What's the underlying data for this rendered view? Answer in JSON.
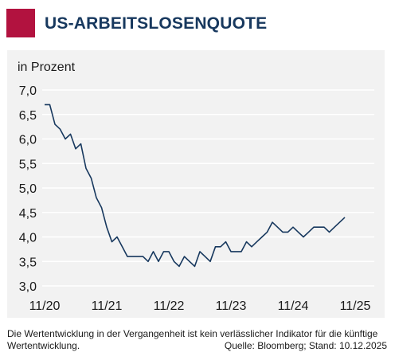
{
  "header": {
    "title": "US-ARBEITSLOSENQUOTE",
    "brand_color": "#b2123f",
    "title_color": "#17385e"
  },
  "chart_data": {
    "type": "line",
    "ylabel": "in Prozent",
    "ylim": [
      3.0,
      7.0
    ],
    "yticks": [
      "7,0",
      "6,5",
      "6,0",
      "5,5",
      "5,0",
      "4,5",
      "4,0",
      "3,5",
      "3,0"
    ],
    "xticks": [
      "11/20",
      "11/21",
      "11/22",
      "11/23",
      "11/24",
      "11/25"
    ],
    "grid": true,
    "line_color": "#17385e",
    "series": [
      {
        "x": [
          "2020-11",
          "2020-12",
          "2021-01",
          "2021-02",
          "2021-03",
          "2021-04",
          "2021-05",
          "2021-06",
          "2021-07",
          "2021-08",
          "2021-09",
          "2021-10",
          "2021-11",
          "2021-12",
          "2022-01",
          "2022-02",
          "2022-03",
          "2022-04",
          "2022-05",
          "2022-06",
          "2022-07",
          "2022-08",
          "2022-09",
          "2022-10",
          "2022-11",
          "2022-12",
          "2023-01",
          "2023-02",
          "2023-03",
          "2023-04",
          "2023-05",
          "2023-06",
          "2023-07",
          "2023-08",
          "2023-09",
          "2023-10",
          "2023-11",
          "2023-12",
          "2024-01",
          "2024-02",
          "2024-03",
          "2024-04",
          "2024-05",
          "2024-06",
          "2024-07",
          "2024-08",
          "2024-09",
          "2024-10",
          "2024-11",
          "2024-12",
          "2025-01",
          "2025-02",
          "2025-03",
          "2025-04",
          "2025-05",
          "2025-06",
          "2025-07",
          "2025-08",
          "2025-09"
        ],
        "values": [
          6.7,
          6.7,
          6.3,
          6.2,
          6.0,
          6.1,
          5.8,
          5.9,
          5.4,
          5.2,
          4.8,
          4.6,
          4.2,
          3.9,
          4.0,
          3.8,
          3.6,
          3.6,
          3.6,
          3.6,
          3.5,
          3.7,
          3.5,
          3.7,
          3.7,
          3.5,
          3.4,
          3.6,
          3.5,
          3.4,
          3.7,
          3.6,
          3.5,
          3.8,
          3.8,
          3.9,
          3.7,
          3.7,
          3.7,
          3.9,
          3.8,
          3.9,
          4.0,
          4.1,
          4.3,
          4.2,
          4.1,
          4.1,
          4.2,
          4.1,
          4.0,
          4.1,
          4.2,
          4.2,
          4.2,
          4.1,
          4.2,
          4.3,
          4.4
        ]
      }
    ]
  },
  "footer": {
    "disclaimer": "Die Wertentwicklung in der Vergangenheit ist kein verlässlicher Indikator für die künftige Wertentwicklung.",
    "source": "Quelle: Bloomberg; Stand: 10.12.2025"
  }
}
